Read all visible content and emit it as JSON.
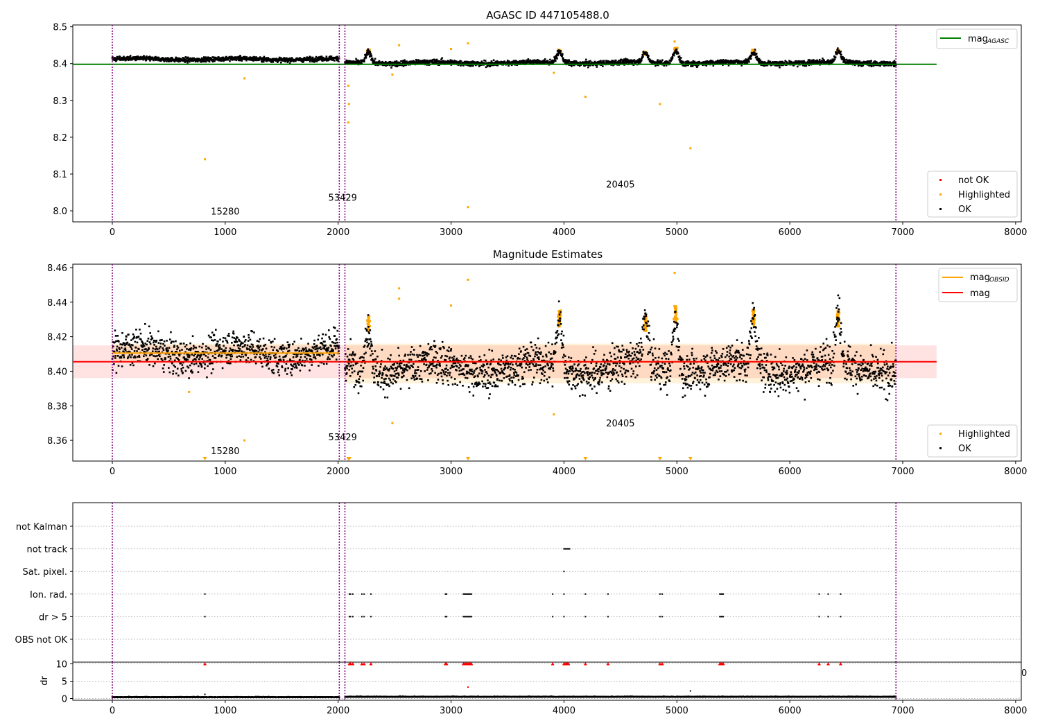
{
  "chart_data": [
    {
      "type": "scatter",
      "title": "AGASC ID 447105488.0",
      "xlim": [
        -350,
        8050
      ],
      "ylim": [
        7.97,
        8.505
      ],
      "x_ticks": [
        0,
        1000,
        2000,
        3000,
        4000,
        5000,
        6000,
        7000,
        8000
      ],
      "x_tick_labels": [
        "0",
        "1000",
        "2000",
        "3000",
        "4000",
        "5000",
        "6000",
        "7000",
        "8000"
      ],
      "y_ticks": [
        8.0,
        8.1,
        8.2,
        8.3,
        8.4,
        8.5
      ],
      "y_tick_labels": [
        "8.0",
        "8.1",
        "8.2",
        "8.3",
        "8.4",
        "8.5"
      ],
      "legend_lines": [
        {
          "label": "mag",
          "sub": "AGASC",
          "color": "#008000"
        }
      ],
      "legend_points": [
        {
          "label": "not OK",
          "color": "#ff0000"
        },
        {
          "label": "Highlighted",
          "color": "#ffa500"
        },
        {
          "label": "OK",
          "color": "#000000"
        }
      ],
      "obs_lines": [
        0,
        2010,
        2060,
        6940
      ],
      "obs_labels": [
        {
          "text": "15280",
          "x": 1000,
          "y": 7.99
        },
        {
          "text": "53429",
          "x": 2040,
          "y": 8.027
        },
        {
          "text": "20405",
          "x": 4500,
          "y": 8.063
        }
      ],
      "agasc_mag": {
        "value": 8.398,
        "x": [
          -350,
          7300
        ],
        "color": "#008000"
      },
      "ok_bands": [
        {
          "x": [
            0,
            2010
          ],
          "y": 8.412,
          "spread": 0.005
        },
        {
          "x": [
            2060,
            6940
          ],
          "y": 8.402,
          "spread": 0.006
        }
      ],
      "ok_bumps": [
        {
          "x": 3960,
          "height": 0.03
        },
        {
          "x": 4720,
          "height": 0.025
        },
        {
          "x": 4990,
          "height": 0.035
        },
        {
          "x": 5680,
          "height": 0.03
        },
        {
          "x": 6430,
          "height": 0.03
        },
        {
          "x": 2270,
          "height": 0.03
        }
      ],
      "highlighted_outliers": [
        {
          "x": 820,
          "y": 8.14
        },
        {
          "x": 1170,
          "y": 8.36
        },
        {
          "x": 2090,
          "y": 8.34
        },
        {
          "x": 2095,
          "y": 8.29
        },
        {
          "x": 2090,
          "y": 8.24
        },
        {
          "x": 3150,
          "y": 8.01
        },
        {
          "x": 4190,
          "y": 8.31
        },
        {
          "x": 4850,
          "y": 8.29
        },
        {
          "x": 5120,
          "y": 8.17
        },
        {
          "x": 2480,
          "y": 8.37
        },
        {
          "x": 3910,
          "y": 8.375
        },
        {
          "x": 2540,
          "y": 8.45
        },
        {
          "x": 3150,
          "y": 8.455
        },
        {
          "x": 4980,
          "y": 8.46
        },
        {
          "x": 3000,
          "y": 8.44
        }
      ]
    },
    {
      "type": "scatter",
      "title": "Magnitude Estimates",
      "xlim": [
        -350,
        8050
      ],
      "ylim": [
        8.348,
        8.462
      ],
      "x_ticks": [
        0,
        1000,
        2000,
        3000,
        4000,
        5000,
        6000,
        7000,
        8000
      ],
      "x_tick_labels": [
        "0",
        "1000",
        "2000",
        "3000",
        "4000",
        "5000",
        "6000",
        "7000",
        "8000"
      ],
      "y_ticks": [
        8.36,
        8.38,
        8.4,
        8.42,
        8.44,
        8.46
      ],
      "y_tick_labels": [
        "8.36",
        "8.38",
        "8.40",
        "8.42",
        "8.44",
        "8.46"
      ],
      "legend_lines": [
        {
          "label": "mag",
          "sub": "OBSID",
          "color": "#ffa500"
        },
        {
          "label": "mag",
          "sub": "",
          "color": "#ff0000"
        }
      ],
      "legend_points": [
        {
          "label": "Highlighted",
          "color": "#ffa500"
        },
        {
          "label": "OK",
          "color": "#000000"
        }
      ],
      "obs_lines": [
        0,
        2010,
        2060,
        6940
      ],
      "obs_labels": [
        {
          "text": "15280",
          "x": 1000,
          "y": 8.352
        },
        {
          "text": "53429",
          "x": 2040,
          "y": 8.36
        },
        {
          "text": "20405",
          "x": 4500,
          "y": 8.368
        }
      ],
      "mag_overall": {
        "value": 8.4055,
        "band": [
          8.396,
          8.415
        ],
        "x": [
          -350,
          7300
        ]
      },
      "mag_obsid": [
        {
          "x": [
            0,
            2010
          ],
          "value": 8.4105,
          "band": [
            8.405,
            8.416
          ]
        },
        {
          "x": [
            2060,
            6940
          ],
          "value": 8.4055,
          "band": [
            8.393,
            8.416
          ]
        }
      ],
      "ok_bands": [
        {
          "x": [
            0,
            2010
          ],
          "y": 8.411,
          "spread": 0.0085
        },
        {
          "x": [
            2060,
            6940
          ],
          "y": 8.402,
          "spread": 0.0095
        }
      ],
      "ok_bumps": [
        {
          "x": 3960,
          "height": 0.028
        },
        {
          "x": 4720,
          "height": 0.025
        },
        {
          "x": 4990,
          "height": 0.03
        },
        {
          "x": 5680,
          "height": 0.028
        },
        {
          "x": 6430,
          "height": 0.028
        },
        {
          "x": 2270,
          "height": 0.025
        }
      ],
      "highlighted_outliers": [
        {
          "x": 1170,
          "y": 8.36
        },
        {
          "x": 2480,
          "y": 8.37
        },
        {
          "x": 3910,
          "y": 8.375
        },
        {
          "x": 3150,
          "y": 8.453
        },
        {
          "x": 4980,
          "y": 8.457
        },
        {
          "x": 2540,
          "y": 8.448
        },
        {
          "x": 2540,
          "y": 8.442
        },
        {
          "x": 3000,
          "y": 8.438
        },
        {
          "x": 680,
          "y": 8.388
        }
      ],
      "below_range_markers": [
        820,
        2090,
        2100,
        3150,
        4190,
        4850,
        5120
      ]
    },
    {
      "type": "scatter",
      "title": "",
      "xlim": [
        -350,
        8050
      ],
      "categories": [
        "not Kalman",
        "not track",
        "Sat. pixel.",
        "Ion. rad.",
        "dr > 5",
        "OBS not OK"
      ],
      "flags": {
        "not track": [
          4000,
          4010,
          4020,
          4030,
          4040,
          4050
        ],
        "Sat. pixel.": [
          4000
        ],
        "Ion. rad.": [
          820,
          2100,
          2110,
          2130,
          2210,
          2230,
          2290,
          2950,
          2960,
          3110,
          3120,
          3130,
          3140,
          3150,
          3160,
          3170,
          3180,
          3900,
          4000,
          4190,
          4390,
          4850,
          4870,
          5380,
          5390,
          5400,
          5410,
          6260,
          6340,
          6450
        ],
        "dr > 5": [
          820,
          2100,
          2110,
          2130,
          2210,
          2230,
          2290,
          2950,
          2960,
          3110,
          3120,
          3130,
          3140,
          3150,
          3160,
          3170,
          3180,
          3900,
          4000,
          4190,
          4390,
          4850,
          4870,
          5380,
          5390,
          5400,
          5410,
          6260,
          6340,
          6450
        ]
      },
      "obs_lines": [
        0,
        2010,
        2060,
        6940
      ],
      "clipped_tick_label": "0"
    },
    {
      "type": "scatter",
      "ylabel": "dr",
      "xlim": [
        -350,
        8050
      ],
      "ylim": [
        -0.5,
        10.5
      ],
      "x_ticks": [
        0,
        1000,
        2000,
        3000,
        4000,
        5000,
        6000,
        7000,
        8000
      ],
      "x_tick_labels": [
        "0",
        "1000",
        "2000",
        "3000",
        "4000",
        "5000",
        "6000",
        "7000",
        "8000"
      ],
      "y_ticks": [
        0,
        5,
        10
      ],
      "y_tick_labels": [
        "0",
        "5",
        "10"
      ],
      "dr_baseline": 0.35,
      "dr_capped": [
        820,
        2100,
        2110,
        2130,
        2210,
        2230,
        2290,
        2950,
        2960,
        3110,
        3120,
        3130,
        3140,
        3150,
        3160,
        3170,
        3180,
        3900,
        4000,
        4010,
        4020,
        4030,
        4040,
        4190,
        4390,
        4850,
        4870,
        5380,
        5390,
        5400,
        5410,
        6260,
        6340,
        6450
      ],
      "dr_points": [
        {
          "x": 820,
          "y": 1.2
        },
        {
          "x": 3150,
          "y": 3.3
        },
        {
          "x": 5120,
          "y": 2.2
        }
      ],
      "obs_lines": [
        0,
        2010,
        2060,
        6940
      ]
    }
  ]
}
